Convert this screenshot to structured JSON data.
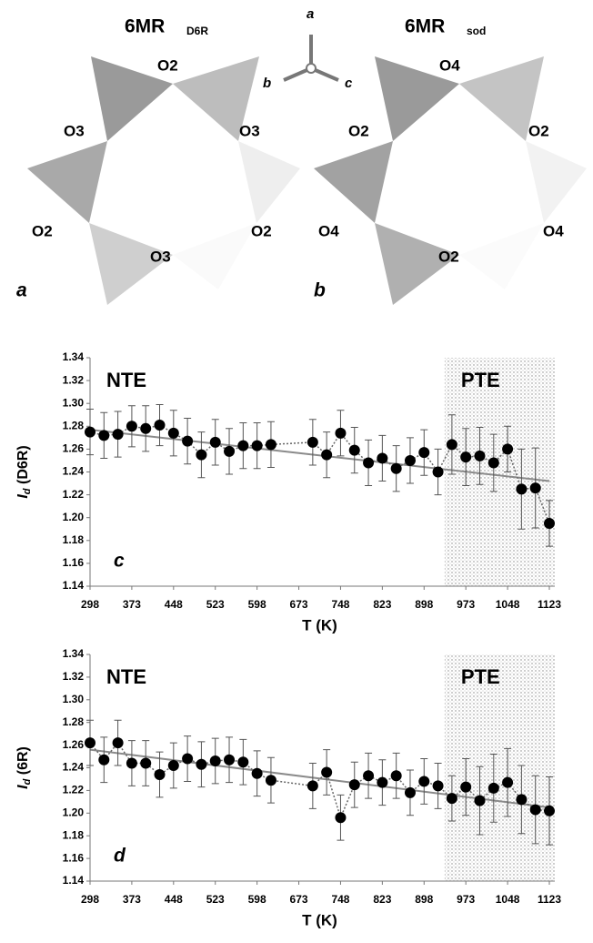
{
  "diagram": {
    "left_title": "6MR",
    "left_sub": "D6R",
    "right_title": "6MR",
    "right_sub": "sod",
    "axes": [
      "a",
      "b",
      "c"
    ],
    "left_labels": [
      "O2",
      "O3",
      "O3",
      "O2",
      "O2",
      "O3"
    ],
    "right_labels": [
      "O4",
      "O2",
      "O2",
      "O4",
      "O4",
      "O2"
    ],
    "left_panel": "a",
    "right_panel": "b"
  },
  "chart_data": [
    {
      "type": "scatter",
      "panel": "c",
      "x_label": "T (K)",
      "y_label": "I",
      "y_label_sub": "d",
      "y_label_rest": " (D6R)",
      "annotations": [
        "NTE",
        "PTE"
      ],
      "x": [
        298,
        323,
        348,
        373,
        398,
        423,
        448,
        473,
        498,
        523,
        548,
        573,
        598,
        623,
        698,
        723,
        748,
        773,
        798,
        823,
        848,
        873,
        898,
        923,
        948,
        973,
        998,
        1023,
        1048,
        1073,
        1098,
        1123
      ],
      "values": [
        1.275,
        1.272,
        1.273,
        1.28,
        1.278,
        1.281,
        1.274,
        1.267,
        1.255,
        1.266,
        1.258,
        1.263,
        1.263,
        1.264,
        1.266,
        1.255,
        1.274,
        1.259,
        1.248,
        1.252,
        1.243,
        1.25,
        1.257,
        1.24,
        1.264,
        1.253,
        1.254,
        1.248,
        1.26,
        1.225,
        1.226,
        1.195
      ],
      "errors": [
        0.02,
        0.02,
        0.02,
        0.018,
        0.02,
        0.018,
        0.02,
        0.02,
        0.02,
        0.02,
        0.02,
        0.02,
        0.02,
        0.02,
        0.02,
        0.02,
        0.02,
        0.02,
        0.02,
        0.02,
        0.02,
        0.02,
        0.02,
        0.02,
        0.026,
        0.025,
        0.025,
        0.025,
        0.02,
        0.035,
        0.035,
        0.02
      ],
      "color": "#000000",
      "trend": {
        "x": [
          298,
          1123
        ],
        "values": [
          1.277,
          1.232
        ]
      },
      "shaded_region": [
        935,
        1123
      ],
      "xlim": [
        298,
        1123
      ],
      "xticks": [
        298,
        373,
        448,
        523,
        598,
        673,
        748,
        823,
        898,
        973,
        1048,
        1123
      ],
      "ylim": [
        1.14,
        1.34
      ],
      "yticks": [
        1.14,
        1.16,
        1.18,
        {
          "value": 1.2,
          "label": "1.20"
        },
        1.22,
        1.24,
        1.26,
        1.28,
        {
          "value": 1.3,
          "label": "1.30"
        },
        1.32,
        1.34
      ]
    },
    {
      "type": "scatter",
      "panel": "d",
      "x_label": "T (K)",
      "y_label": "I",
      "y_label_sub": "d",
      "y_label_rest": " (6R)",
      "annotations": [
        "NTE",
        "PTE"
      ],
      "x": [
        298,
        323,
        348,
        373,
        398,
        423,
        448,
        473,
        498,
        523,
        548,
        573,
        598,
        623,
        698,
        723,
        748,
        773,
        798,
        823,
        848,
        873,
        898,
        923,
        948,
        973,
        998,
        1023,
        1048,
        1073,
        1098,
        1123
      ],
      "values": [
        1.262,
        1.247,
        1.262,
        1.244,
        1.244,
        1.234,
        1.242,
        1.248,
        1.243,
        1.246,
        1.247,
        1.245,
        1.235,
        1.229,
        1.224,
        1.236,
        1.196,
        1.225,
        1.233,
        1.227,
        1.233,
        1.218,
        1.228,
        1.224,
        1.213,
        1.223,
        1.211,
        1.222,
        1.227,
        1.212,
        1.203,
        1.202
      ],
      "errors": [
        0.02,
        0.02,
        0.02,
        0.02,
        0.02,
        0.02,
        0.02,
        0.02,
        0.02,
        0.02,
        0.02,
        0.02,
        0.02,
        0.02,
        0.02,
        0.02,
        0.02,
        0.02,
        0.02,
        0.02,
        0.02,
        0.02,
        0.02,
        0.02,
        0.02,
        0.025,
        0.03,
        0.03,
        0.03,
        0.03,
        0.03,
        0.03
      ],
      "color": "#000000",
      "trend": {
        "x": [
          298,
          1123
        ],
        "values": [
          1.256,
          1.205
        ]
      },
      "shaded_region": [
        935,
        1123
      ],
      "xlim": [
        298,
        1123
      ],
      "xticks": [
        298,
        373,
        448,
        523,
        598,
        673,
        748,
        823,
        898,
        973,
        1048,
        1123
      ],
      "ylim": [
        1.14,
        1.34
      ],
      "yticks": [
        1.14,
        1.16,
        1.18,
        {
          "value": 1.2,
          "label": "1.20"
        },
        1.22,
        1.24,
        1.26,
        1.28,
        {
          "value": 1.3,
          "label": "1.30"
        },
        1.32,
        1.34
      ]
    }
  ]
}
